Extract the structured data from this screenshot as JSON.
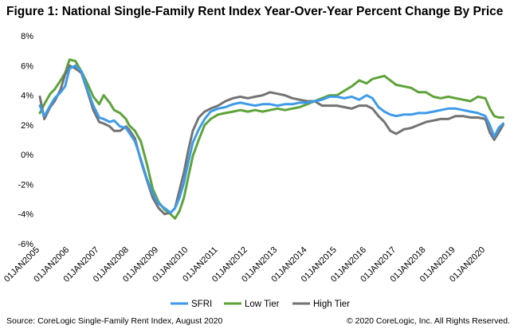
{
  "header": {
    "title": "Figure 1: National Single-Family Rent Index Year-Over-Year Percent Change By Price"
  },
  "footer": {
    "source": "Source: CoreLogic Single-Family Rent Index, August 2020",
    "copyright": "© 2020 CoreLogic, Inc. All Rights Reserved."
  },
  "chart_data": {
    "type": "line",
    "title": "Figure 1: National Single-Family Rent Index Year-Over-Year Percent Change By Price",
    "xlabel": "",
    "ylabel": "",
    "ylim": [
      -6,
      8
    ],
    "yticks": [
      -6,
      -4,
      -2,
      0,
      2,
      4,
      6,
      8
    ],
    "ytick_labels": [
      "-6%",
      "-4%",
      "-2%",
      "0%",
      "2%",
      "4%",
      "6%",
      "8%"
    ],
    "xlim": [
      2005,
      2020.75
    ],
    "xtick_labels": [
      "01JAN2005",
      "01JAN2006",
      "01JAN2007",
      "01JAN2008",
      "01JAN2009",
      "01JAN2010",
      "01JAN2011",
      "01JAN2012",
      "01JAN2013",
      "01JAN2014",
      "01JAN2015",
      "01JAN2016",
      "01JAN2017",
      "01JAN2018",
      "01JAN2019",
      "01JAN2020"
    ],
    "grid": false,
    "legend_position": "bottom",
    "series": [
      {
        "name": "SFRI",
        "color": "#3d9be9",
        "x": [
          2005.0,
          2005.15,
          2005.35,
          2005.5,
          2005.7,
          2005.85,
          2006.0,
          2006.2,
          2006.4,
          2006.6,
          2006.8,
          2007.0,
          2007.15,
          2007.35,
          2007.5,
          2007.7,
          2007.9,
          2008.0,
          2008.2,
          2008.4,
          2008.6,
          2008.8,
          2009.0,
          2009.2,
          2009.4,
          2009.55,
          2009.7,
          2009.85,
          2010.0,
          2010.15,
          2010.35,
          2010.55,
          2010.75,
          2011.0,
          2011.25,
          2011.5,
          2011.75,
          2012.0,
          2012.25,
          2012.5,
          2012.75,
          2013.0,
          2013.25,
          2013.5,
          2013.75,
          2014.0,
          2014.25,
          2014.5,
          2014.75,
          2015.0,
          2015.25,
          2015.5,
          2015.75,
          2016.0,
          2016.2,
          2016.4,
          2016.6,
          2016.8,
          2017.0,
          2017.25,
          2017.5,
          2017.75,
          2018.0,
          2018.25,
          2018.5,
          2018.75,
          2019.0,
          2019.25,
          2019.5,
          2019.75,
          2020.0,
          2020.15,
          2020.3,
          2020.45,
          2020.6
        ],
        "values": [
          3.3,
          2.6,
          3.3,
          3.8,
          4.2,
          4.6,
          5.8,
          6.0,
          5.6,
          4.4,
          3.3,
          2.5,
          2.4,
          2.2,
          2.3,
          1.9,
          1.8,
          1.5,
          0.9,
          -0.3,
          -1.6,
          -2.6,
          -3.3,
          -3.6,
          -3.9,
          -3.6,
          -2.9,
          -1.9,
          -0.5,
          0.8,
          1.7,
          2.4,
          2.9,
          3.1,
          3.2,
          3.4,
          3.5,
          3.4,
          3.3,
          3.4,
          3.4,
          3.3,
          3.4,
          3.4,
          3.5,
          3.5,
          3.6,
          3.7,
          3.9,
          3.9,
          3.8,
          3.9,
          3.7,
          4.0,
          3.8,
          3.2,
          2.9,
          2.7,
          2.6,
          2.7,
          2.7,
          2.8,
          2.8,
          2.9,
          3.0,
          3.1,
          3.1,
          3.0,
          2.9,
          2.8,
          2.6,
          2.0,
          1.2,
          1.8,
          2.1
        ]
      },
      {
        "name": "Low Tier",
        "color": "#5ea33a",
        "x": [
          2005.0,
          2005.15,
          2005.35,
          2005.5,
          2005.7,
          2005.85,
          2006.0,
          2006.2,
          2006.4,
          2006.6,
          2006.8,
          2007.0,
          2007.15,
          2007.35,
          2007.5,
          2007.7,
          2007.9,
          2008.0,
          2008.2,
          2008.4,
          2008.6,
          2008.8,
          2009.0,
          2009.2,
          2009.4,
          2009.55,
          2009.7,
          2009.85,
          2010.0,
          2010.15,
          2010.35,
          2010.55,
          2010.75,
          2011.0,
          2011.25,
          2011.5,
          2011.75,
          2012.0,
          2012.25,
          2012.5,
          2012.75,
          2013.0,
          2013.25,
          2013.5,
          2013.75,
          2014.0,
          2014.25,
          2014.5,
          2014.75,
          2015.0,
          2015.25,
          2015.5,
          2015.75,
          2016.0,
          2016.2,
          2016.4,
          2016.6,
          2016.8,
          2017.0,
          2017.25,
          2017.5,
          2017.75,
          2018.0,
          2018.25,
          2018.5,
          2018.75,
          2019.0,
          2019.25,
          2019.5,
          2019.75,
          2020.0,
          2020.15,
          2020.3,
          2020.45,
          2020.6
        ],
        "values": [
          2.8,
          3.4,
          4.1,
          4.4,
          5.0,
          5.5,
          6.4,
          6.3,
          5.6,
          4.8,
          3.9,
          3.4,
          4.0,
          3.5,
          3.0,
          2.8,
          2.4,
          2.0,
          1.6,
          0.9,
          -0.6,
          -2.3,
          -3.2,
          -3.7,
          -4.0,
          -4.3,
          -3.8,
          -2.9,
          -1.5,
          -0.1,
          1.0,
          2.0,
          2.4,
          2.7,
          2.8,
          2.9,
          3.0,
          2.9,
          3.0,
          2.9,
          3.0,
          3.1,
          3.0,
          3.1,
          3.2,
          3.4,
          3.6,
          3.8,
          4.0,
          4.0,
          4.3,
          4.6,
          5.0,
          4.8,
          5.1,
          5.2,
          5.3,
          5.0,
          4.7,
          4.6,
          4.5,
          4.2,
          4.2,
          3.9,
          3.8,
          3.9,
          3.8,
          3.7,
          3.6,
          3.9,
          3.8,
          3.1,
          2.6,
          2.5,
          2.5
        ]
      },
      {
        "name": "High Tier",
        "color": "#737373",
        "x": [
          2005.0,
          2005.15,
          2005.35,
          2005.5,
          2005.7,
          2005.85,
          2006.0,
          2006.2,
          2006.4,
          2006.6,
          2006.8,
          2007.0,
          2007.15,
          2007.35,
          2007.5,
          2007.7,
          2007.9,
          2008.0,
          2008.2,
          2008.4,
          2008.6,
          2008.8,
          2009.0,
          2009.2,
          2009.4,
          2009.55,
          2009.7,
          2009.85,
          2010.0,
          2010.15,
          2010.35,
          2010.55,
          2010.75,
          2011.0,
          2011.25,
          2011.5,
          2011.75,
          2012.0,
          2012.25,
          2012.5,
          2012.75,
          2013.0,
          2013.25,
          2013.5,
          2013.75,
          2014.0,
          2014.25,
          2014.5,
          2014.75,
          2015.0,
          2015.25,
          2015.5,
          2015.75,
          2016.0,
          2016.2,
          2016.4,
          2016.6,
          2016.8,
          2017.0,
          2017.25,
          2017.5,
          2017.75,
          2018.0,
          2018.25,
          2018.5,
          2018.75,
          2019.0,
          2019.25,
          2019.5,
          2019.75,
          2020.0,
          2020.15,
          2020.3,
          2020.45,
          2020.6
        ],
        "values": [
          3.9,
          2.4,
          3.2,
          3.6,
          4.4,
          5.4,
          6.0,
          5.8,
          5.5,
          4.3,
          3.0,
          2.2,
          2.1,
          1.9,
          1.6,
          1.6,
          1.9,
          1.7,
          1.1,
          -0.4,
          -1.7,
          -2.9,
          -3.6,
          -4.0,
          -3.9,
          -3.6,
          -2.4,
          -1.2,
          0.3,
          1.6,
          2.5,
          2.9,
          3.1,
          3.3,
          3.6,
          3.8,
          3.9,
          3.8,
          3.9,
          4.0,
          4.2,
          4.1,
          4.0,
          3.8,
          3.7,
          3.6,
          3.6,
          3.3,
          3.3,
          3.3,
          3.2,
          3.1,
          3.3,
          3.3,
          3.1,
          2.6,
          2.2,
          1.6,
          1.4,
          1.7,
          1.8,
          2.0,
          2.2,
          2.3,
          2.4,
          2.4,
          2.6,
          2.6,
          2.5,
          2.5,
          2.4,
          1.5,
          1.0,
          1.5,
          2.0
        ]
      }
    ]
  }
}
